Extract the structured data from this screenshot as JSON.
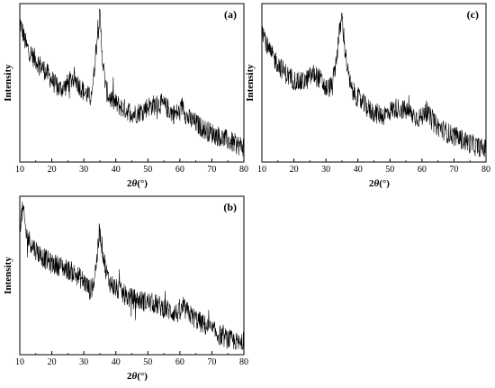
{
  "chart_data": [
    {
      "type": "line",
      "panel_label": "(a)",
      "xlabel_prefix": "2",
      "xlabel_symbol": "θ",
      "xlabel_unit": "(°)",
      "ylabel": "Intensity",
      "xlim": [
        10,
        80
      ],
      "xticks": [
        "10",
        "20",
        "30",
        "40",
        "50",
        "60",
        "70",
        "80"
      ],
      "yticks_shown": false,
      "series": [
        {
          "x": [
            10,
            12,
            14,
            16,
            18,
            20,
            22,
            24,
            26,
            27,
            28,
            30,
            32,
            33,
            34,
            35,
            36,
            37,
            38,
            40,
            42,
            44,
            46,
            48,
            50,
            52,
            54,
            56,
            58,
            60,
            61,
            62,
            64,
            66,
            68,
            70,
            72,
            74,
            76,
            78,
            80
          ],
          "y": [
            92,
            75,
            68,
            63,
            58,
            52,
            46,
            47,
            52,
            54,
            50,
            44,
            40,
            52,
            78,
            95,
            62,
            45,
            40,
            36,
            33,
            31,
            29,
            31,
            34,
            35,
            36,
            33,
            29,
            30,
            36,
            27,
            24,
            21,
            18,
            16,
            14,
            12,
            10,
            8,
            7
          ]
        }
      ]
    },
    {
      "type": "line",
      "panel_label": "(b)",
      "xlabel_prefix": "2",
      "xlabel_symbol": "θ",
      "xlabel_unit": "(°)",
      "ylabel": "Intensity",
      "xlim": [
        10,
        80
      ],
      "xticks": [
        "10",
        "20",
        "30",
        "40",
        "50",
        "60",
        "70",
        "80"
      ],
      "yticks_shown": false,
      "series": [
        {
          "x": [
            10,
            11,
            12,
            14,
            16,
            18,
            20,
            22,
            24,
            26,
            28,
            30,
            32,
            33,
            34,
            35,
            36,
            37,
            38,
            40,
            42,
            44,
            46,
            48,
            50,
            52,
            54,
            56,
            58,
            60,
            61,
            62,
            64,
            66,
            68,
            70,
            72,
            74,
            76,
            78,
            80
          ],
          "y": [
            85,
            95,
            78,
            70,
            65,
            61,
            58,
            57,
            55,
            53,
            50,
            46,
            40,
            44,
            60,
            80,
            65,
            52,
            46,
            41,
            38,
            35,
            34,
            33,
            32,
            31,
            29,
            27,
            25,
            24,
            28,
            26,
            22,
            19,
            16,
            13,
            10,
            8,
            6,
            4,
            3
          ]
        }
      ]
    },
    {
      "type": "line",
      "panel_label": "(c)",
      "xlabel_prefix": "2",
      "xlabel_symbol": "θ",
      "xlabel_unit": "(°)",
      "ylabel": "Intensity",
      "xlim": [
        10,
        80
      ],
      "xticks": [
        "10",
        "20",
        "30",
        "40",
        "50",
        "60",
        "70",
        "80"
      ],
      "yticks_shown": false,
      "series": [
        {
          "x": [
            10,
            12,
            14,
            16,
            18,
            20,
            22,
            24,
            26,
            28,
            30,
            32,
            33,
            34,
            35,
            36,
            37,
            38,
            40,
            42,
            44,
            46,
            48,
            50,
            52,
            54,
            56,
            58,
            60,
            61,
            62,
            64,
            66,
            68,
            70,
            72,
            74,
            76,
            78,
            80
          ],
          "y": [
            88,
            72,
            66,
            60,
            55,
            52,
            50,
            52,
            56,
            53,
            46,
            48,
            62,
            80,
            95,
            72,
            55,
            45,
            40,
            35,
            31,
            29,
            28,
            31,
            33,
            32,
            30,
            27,
            26,
            33,
            28,
            22,
            19,
            16,
            14,
            12,
            10,
            8,
            6,
            5
          ]
        }
      ]
    }
  ]
}
